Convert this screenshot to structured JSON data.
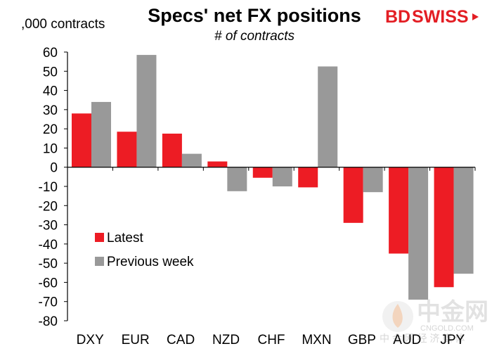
{
  "colors": {
    "latest": "#ed1c24",
    "previous": "#999999",
    "axis": "#000000",
    "brand": "#e31e24"
  },
  "brand": {
    "left": "BD",
    "right": "SWISS"
  },
  "watermark": {
    "main": "中金网",
    "sub": "CNGOLD.COM",
    "cn": "中 金 网 经 济 媒 体"
  },
  "chart_data": {
    "type": "bar",
    "title": "Specs' net FX positions",
    "subtitle": "# of contracts",
    "ylabel": ",000 contracts",
    "xlabel": "",
    "categories": [
      "DXY",
      "EUR",
      "CAD",
      "NZD",
      "CHF",
      "MXN",
      "GBP",
      "AUD",
      "JPY"
    ],
    "series": [
      {
        "name": "Latest",
        "values": [
          28,
          18.5,
          17.5,
          3,
          -5.5,
          -10.5,
          -29,
          -45,
          -62.5
        ]
      },
      {
        "name": "Previous week",
        "values": [
          34,
          58.5,
          7,
          -12.5,
          -10,
          52.5,
          -13,
          -69,
          -55.5
        ]
      }
    ],
    "ylim": [
      -80,
      60
    ],
    "yticks": [
      60,
      50,
      40,
      30,
      20,
      10,
      0,
      -10,
      -20,
      -30,
      -40,
      -50,
      -60,
      -70,
      -80
    ],
    "grid": false,
    "legend_position": "lower-left"
  }
}
